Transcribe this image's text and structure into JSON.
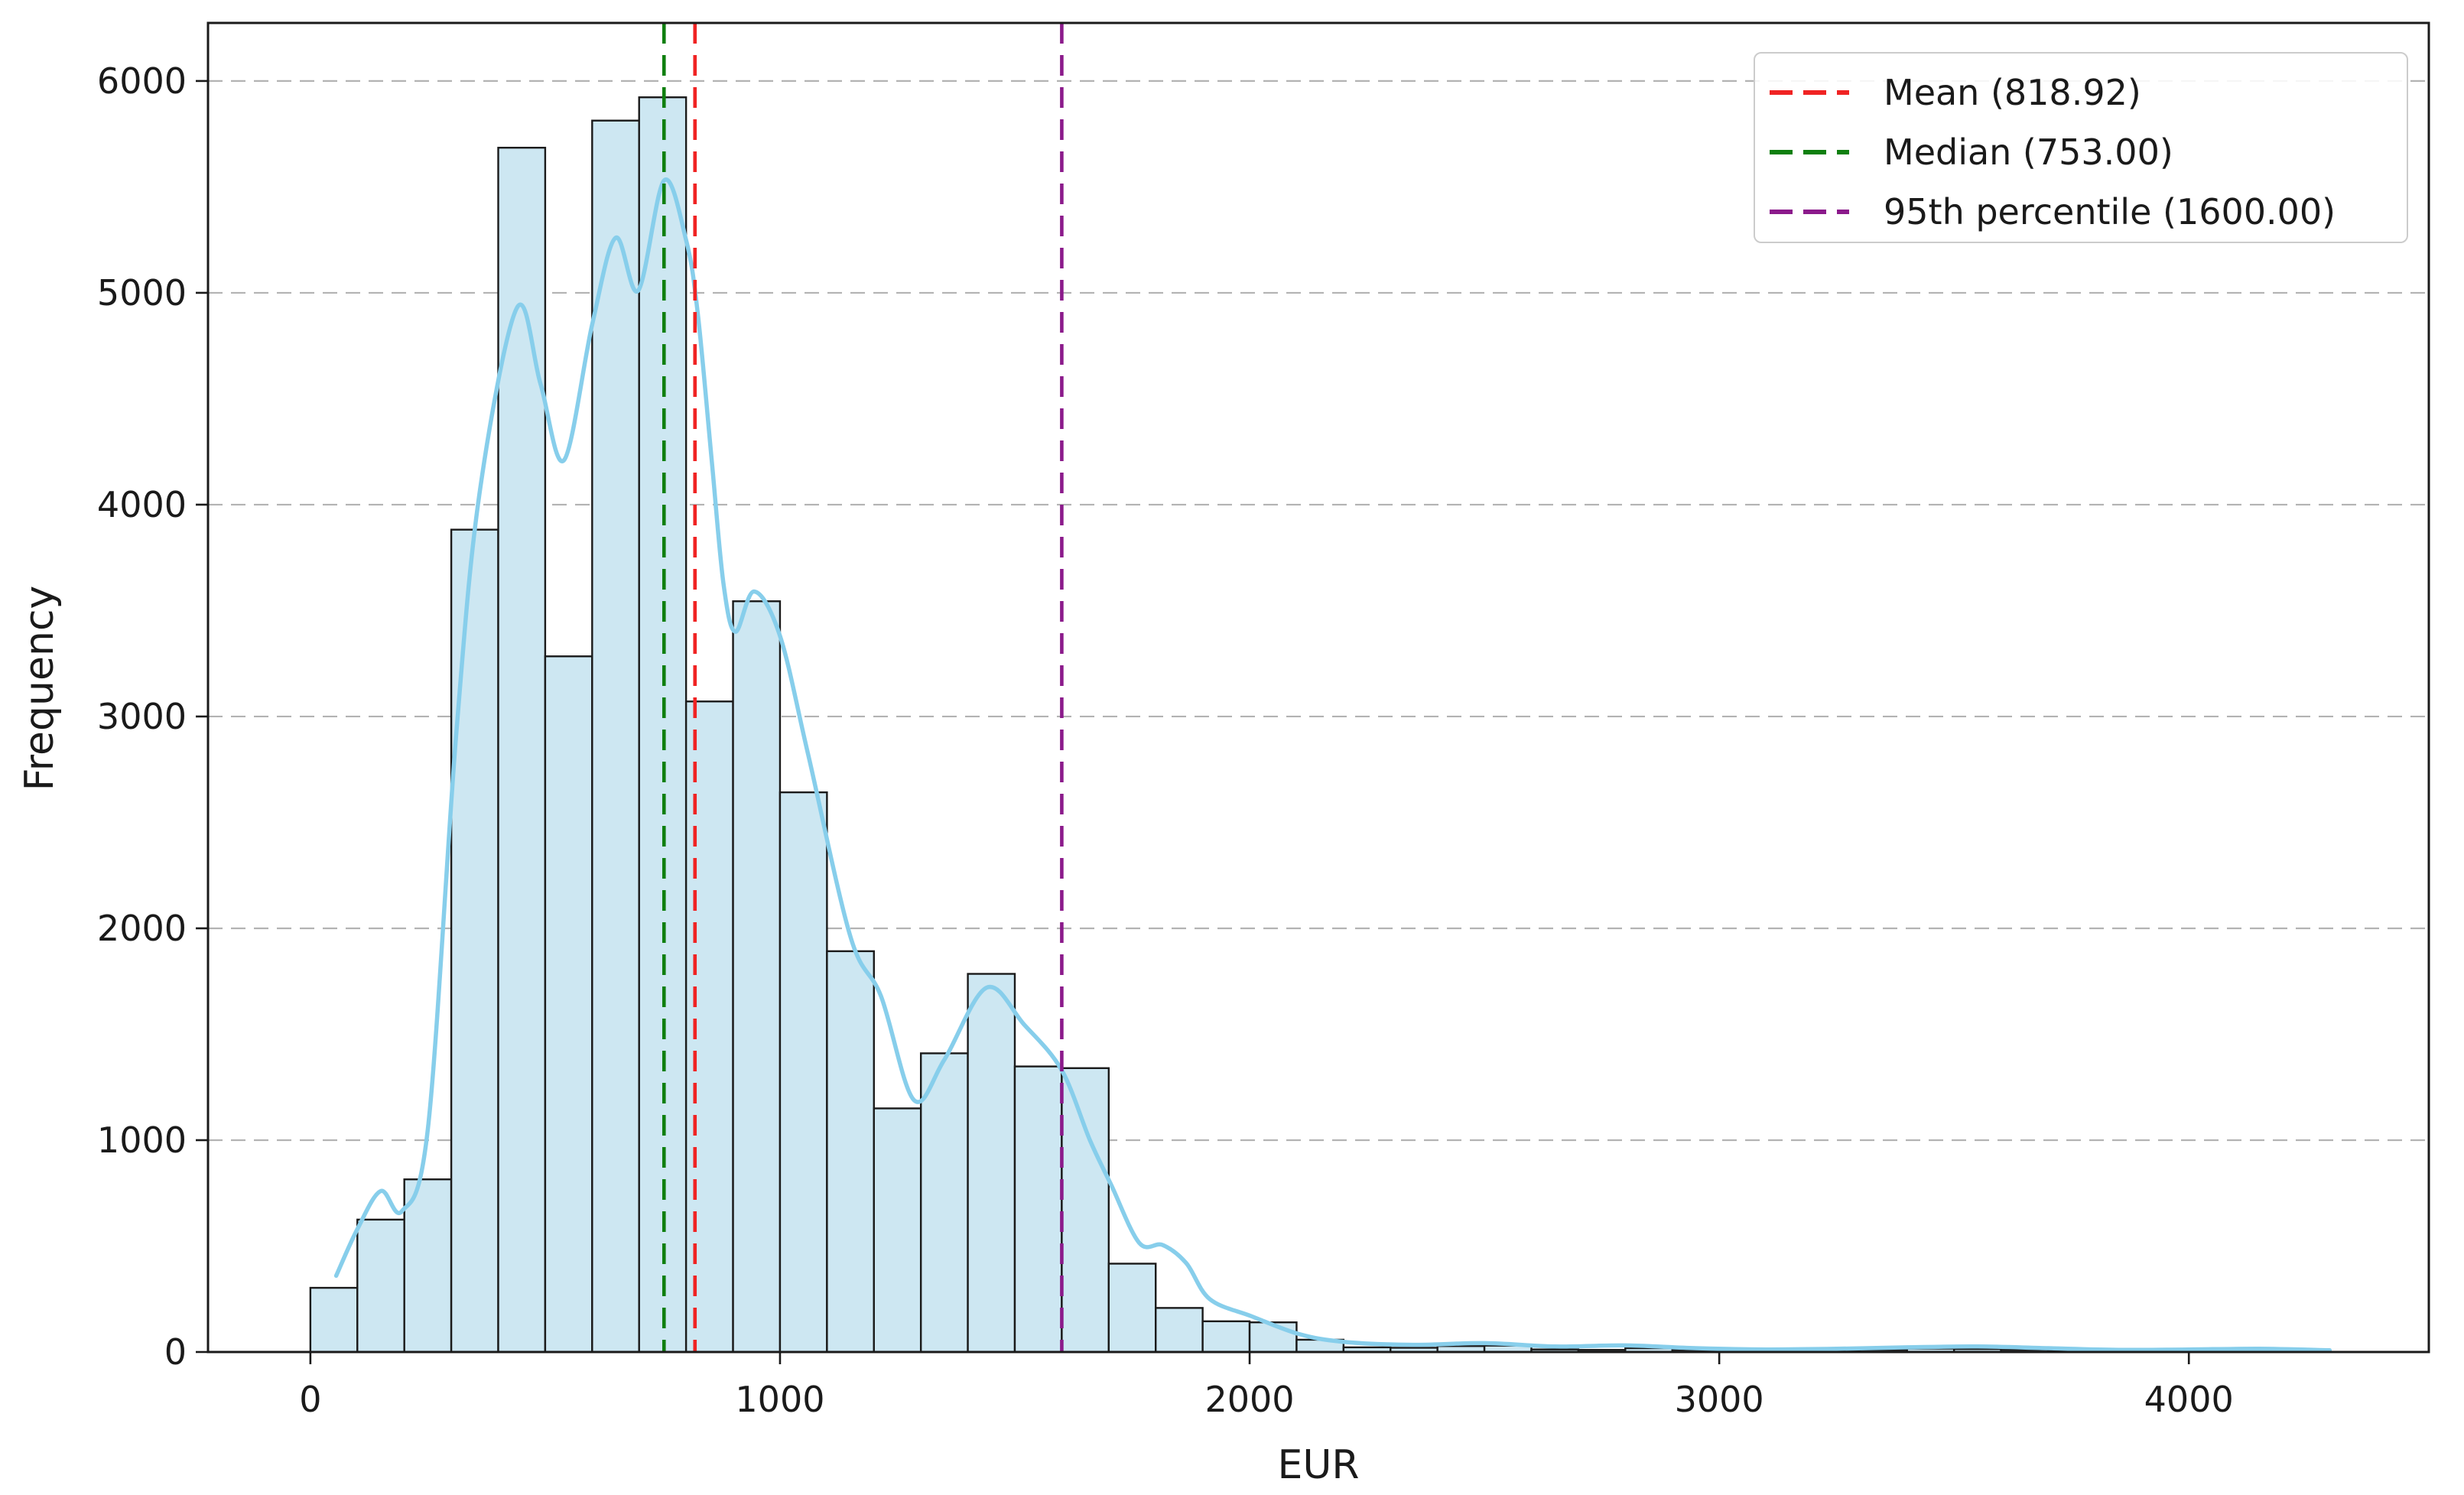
{
  "chart_data": {
    "type": "bar",
    "subtype": "histogram-with-kde",
    "title": "",
    "xlabel": "EUR",
    "ylabel": "Frequency",
    "bin_start": 0,
    "bin_width": 100,
    "frequencies": [
      303,
      625,
      815,
      3882,
      5685,
      3284,
      5813,
      5923,
      3071,
      3544,
      2642,
      1892,
      1150,
      1410,
      1785,
      1348,
      1340,
      417,
      208,
      145,
      140,
      58,
      22,
      20,
      28,
      30,
      12,
      10,
      18,
      10,
      8,
      6,
      6,
      10,
      16,
      14,
      10,
      8,
      6,
      5,
      6,
      5,
      12
    ],
    "kde_points": [
      [
        55,
        360
      ],
      [
        100,
        580
      ],
      [
        150,
        760
      ],
      [
        195,
        665
      ],
      [
        250,
        1050
      ],
      [
        310,
        2900
      ],
      [
        360,
        4050
      ],
      [
        440,
        4930
      ],
      [
        490,
        4570
      ],
      [
        540,
        4210
      ],
      [
        600,
        4850
      ],
      [
        650,
        5260
      ],
      [
        698,
        5010
      ],
      [
        753,
        5530
      ],
      [
        800,
        5250
      ],
      [
        825,
        4900
      ],
      [
        855,
        4200
      ],
      [
        880,
        3620
      ],
      [
        905,
        3400
      ],
      [
        945,
        3590
      ],
      [
        1000,
        3380
      ],
      [
        1060,
        2820
      ],
      [
        1150,
        1960
      ],
      [
        1215,
        1680
      ],
      [
        1285,
        1190
      ],
      [
        1350,
        1380
      ],
      [
        1440,
        1720
      ],
      [
        1520,
        1545
      ],
      [
        1600,
        1330
      ],
      [
        1660,
        1000
      ],
      [
        1705,
        790
      ],
      [
        1765,
        515
      ],
      [
        1815,
        505
      ],
      [
        1865,
        420
      ],
      [
        1915,
        250
      ],
      [
        2005,
        168
      ],
      [
        2105,
        85
      ],
      [
        2200,
        48
      ],
      [
        2350,
        34
      ],
      [
        2500,
        42
      ],
      [
        2650,
        26
      ],
      [
        2800,
        31
      ],
      [
        2950,
        18
      ],
      [
        3100,
        12
      ],
      [
        3250,
        15
      ],
      [
        3400,
        22
      ],
      [
        3550,
        26
      ],
      [
        3700,
        18
      ],
      [
        3850,
        10
      ],
      [
        4000,
        12
      ],
      [
        4150,
        15
      ],
      [
        4300,
        8
      ]
    ],
    "xlim": [
      -218,
      4511
    ],
    "ylim": [
      0,
      6274
    ],
    "x_ticks": [
      0,
      1000,
      2000,
      3000,
      4000
    ],
    "y_ticks": [
      0,
      1000,
      2000,
      3000,
      4000,
      5000,
      6000
    ],
    "grid": "horizontal-dashed",
    "legend_position": "upper-right",
    "vlines": [
      {
        "id": "mean",
        "value": 818.92,
        "color": "#f02323",
        "label": "Mean (818.92)"
      },
      {
        "id": "median",
        "value": 753.0,
        "color": "#0f7f0f",
        "label": "Median (753.00)"
      },
      {
        "id": "p95",
        "value": 1600.0,
        "color": "#8b1a8b",
        "label": "95th percentile (1600.00)"
      }
    ],
    "colors": {
      "bar_fill": "#cde7f2",
      "bar_edge": "#1a1a1a",
      "kde_line": "#87ceeb",
      "grid_line": "#b3b3b3",
      "spine": "#1a1a1a",
      "tick_text": "#1a1a1a",
      "legend_border": "#cccccc"
    }
  }
}
